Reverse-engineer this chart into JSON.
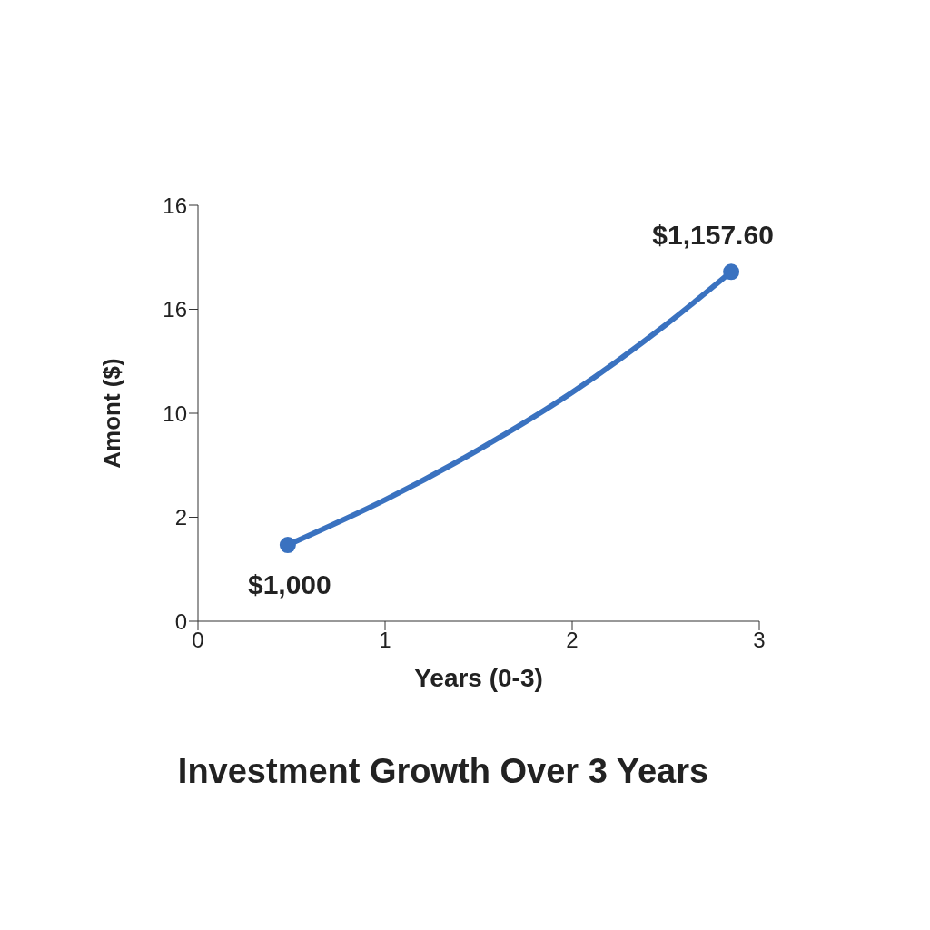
{
  "chart_data": {
    "type": "line",
    "title": "Investment Growth Over 3 Years",
    "xlabel": "Years (0-3)",
    "ylabel": "Amont ($)",
    "x": [
      0.48,
      1,
      1.5,
      2,
      2.5,
      2.85
    ],
    "series": [
      {
        "color": "#3a72c0",
        "values": [
          1000,
          1026,
          1055,
          1088,
          1127,
          1157.6
        ],
        "value_labels": [
          "$1,000",
          null,
          null,
          null,
          null,
          "$1,157.60"
        ]
      }
    ],
    "xlim": [
      0,
      3
    ],
    "xticks": [
      0,
      1,
      2,
      3
    ],
    "ylim": [
      956,
      1196
    ],
    "annotations": [
      "0",
      "2",
      "10",
      "16",
      "16"
    ],
    "grid": false,
    "legend": false,
    "line_style": "solid"
  }
}
